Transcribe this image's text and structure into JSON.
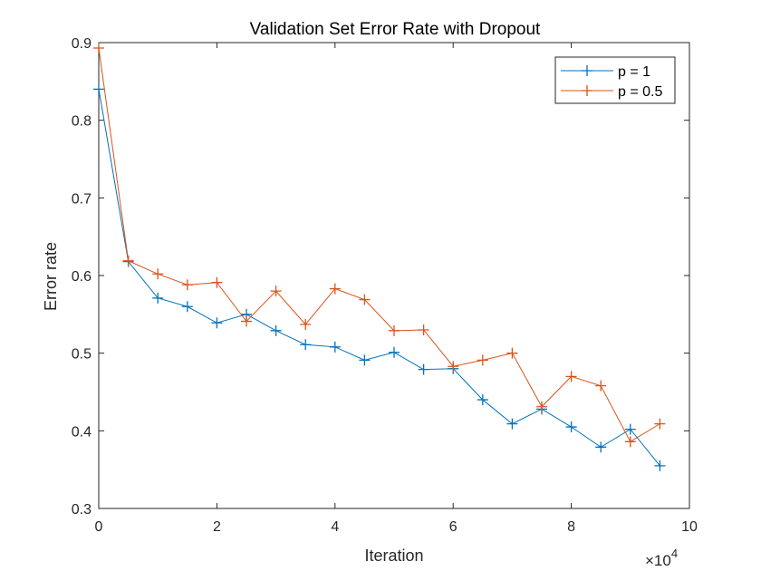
{
  "chart_data": {
    "type": "line",
    "title": "Validation Set Error Rate with Dropout",
    "xlabel": "Iteration",
    "ylabel": "Error rate",
    "x_multiplier_label": {
      "base": "×10",
      "exponent": "4"
    },
    "xlim": [
      0,
      10
    ],
    "ylim": [
      0.3,
      0.9
    ],
    "x_ticks": [
      0,
      2,
      4,
      6,
      8,
      10
    ],
    "y_ticks": [
      0.3,
      0.4,
      0.5,
      0.6,
      0.7,
      0.8,
      0.9
    ],
    "x_tick_labels": [
      "0",
      "2",
      "4",
      "6",
      "8",
      "10"
    ],
    "y_tick_labels": [
      "0.3",
      "0.4",
      "0.5",
      "0.6",
      "0.7",
      "0.8",
      "0.9"
    ],
    "grid": false,
    "legend_position": "top-right",
    "x": [
      0,
      0.5,
      1,
      1.5,
      2,
      2.5,
      3,
      3.5,
      4,
      4.5,
      5,
      5.5,
      6,
      6.5,
      7,
      7.5,
      8,
      8.5,
      9,
      9.5
    ],
    "series": [
      {
        "name": "p = 1",
        "color": "#0072BD",
        "values": [
          0.84,
          0.618,
          0.571,
          0.56,
          0.539,
          0.55,
          0.529,
          0.511,
          0.508,
          0.491,
          0.501,
          0.479,
          0.48,
          0.44,
          0.409,
          0.428,
          0.405,
          0.379,
          0.402,
          0.355
        ]
      },
      {
        "name": "p = 0.5",
        "color": "#D95319",
        "values": [
          0.893,
          0.619,
          0.602,
          0.588,
          0.591,
          0.541,
          0.58,
          0.537,
          0.583,
          0.569,
          0.529,
          0.53,
          0.483,
          0.491,
          0.5,
          0.431,
          0.47,
          0.458,
          0.386,
          0.409
        ]
      }
    ]
  }
}
